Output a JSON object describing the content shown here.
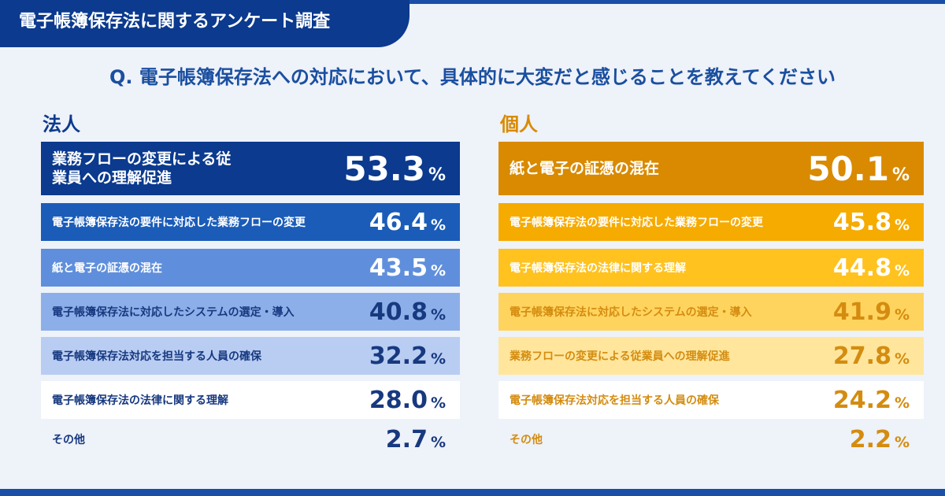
{
  "header": {
    "title": "電子帳簿保存法に関するアンケート調査"
  },
  "question": "Q. 電子帳簿保存法への対応において、具体的に大変だと感じることを教えてください",
  "unit": "%",
  "panels": [
    {
      "title": "法人",
      "rows": [
        {
          "label": "業務フローの変更による従業員への理解促進",
          "value": "53.3"
        },
        {
          "label": "電子帳簿保存法の要件に対応した業務フローの変更",
          "value": "46.4"
        },
        {
          "label": "紙と電子の証憑の混在",
          "value": "43.5"
        },
        {
          "label": "電子帳簿保存法に対応したシステムの選定・導入",
          "value": "40.8"
        },
        {
          "label": "電子帳簿保存法対応を担当する人員の確保",
          "value": "32.2"
        },
        {
          "label": "電子帳簿保存法の法律に関する理解",
          "value": "28.0"
        },
        {
          "label": "その他",
          "value": "2.7"
        }
      ]
    },
    {
      "title": "個人",
      "rows": [
        {
          "label": "紙と電子の証憑の混在",
          "value": "50.1"
        },
        {
          "label": "電子帳簿保存法の要件に対応した業務フローの変更",
          "value": "45.8"
        },
        {
          "label": "電子帳簿保存法の法律に関する理解",
          "value": "44.8"
        },
        {
          "label": "電子帳簿保存法に対応したシステムの選定・導入",
          "value": "41.9"
        },
        {
          "label": "業務フローの変更による従業員への理解促進",
          "value": "27.8"
        },
        {
          "label": "電子帳簿保存法対応を担当する人員の確保",
          "value": "24.2"
        },
        {
          "label": "その他",
          "value": "2.2"
        }
      ]
    }
  ]
}
